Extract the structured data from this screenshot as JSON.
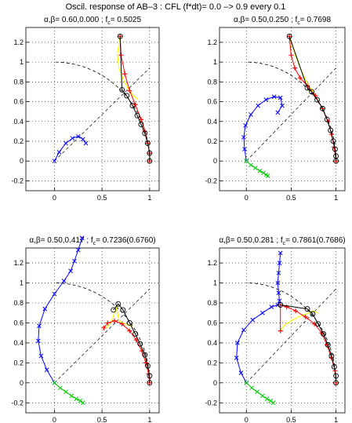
{
  "figure": {
    "title": "Oscil. response of AB–3 : CFL (f*dt)= 0.0 –> 0.9 every 0.1"
  },
  "chart_data": [
    {
      "type": "line",
      "title": "α,β= 0.60,0.000 ; f_c= 0.5025",
      "title_main": "α,β= 0.60,0.000 ; f",
      "title_sub": "c",
      "title_tail": "= 0.5025",
      "xlim": [
        -0.3,
        1.1
      ],
      "ylim": [
        -0.3,
        1.35
      ],
      "xticks": [
        0,
        0.5,
        1
      ],
      "xtick_labels": [
        "0",
        "0.5",
        "1"
      ],
      "yticks": [
        -0.2,
        0,
        0.2,
        0.4,
        0.6,
        0.8,
        1,
        1.2
      ],
      "ytick_labels": [
        "-0.2",
        "0",
        "0.2",
        "0.4",
        "0.6",
        "0.8",
        "1",
        "1.2"
      ],
      "grid": "dotted",
      "series": [
        {
          "color": "#0000ff",
          "marker": "x",
          "x": [
            0,
            0.05,
            0.12,
            0.19,
            0.25,
            0.3,
            0.33
          ],
          "y": [
            0,
            0.09,
            0.18,
            0.23,
            0.25,
            0.22,
            0.18
          ]
        },
        {
          "color": "#ffff00",
          "marker": "none",
          "x": [
            0.69,
            0.66,
            0.68,
            0.73,
            0.78,
            0.83,
            0.88
          ],
          "y": [
            1.26,
            1.08,
            0.93,
            0.81,
            0.72,
            0.66,
            0.62
          ]
        },
        {
          "color": "#ff0000",
          "marker": "+",
          "x": [
            0.69,
            0.7,
            0.74,
            0.79,
            0.85,
            0.91,
            0.95,
            0.98,
            1.0,
            1.0
          ],
          "y": [
            1.26,
            1.07,
            0.88,
            0.71,
            0.57,
            0.42,
            0.3,
            0.18,
            0.08,
            0.0
          ]
        },
        {
          "color": "#000000",
          "marker": "o",
          "x": [
            0.69,
            0.71,
            0.76,
            0.82,
            0.87,
            0.91,
            0.95,
            0.98,
            1.0,
            1.0
          ],
          "y": [
            1.26,
            0.72,
            0.66,
            0.56,
            0.46,
            0.37,
            0.28,
            0.18,
            0.08,
            0.0
          ]
        }
      ]
    },
    {
      "type": "line",
      "title": "α,β= 0.50,0.250 ; f_c= 0.7698",
      "title_main": "α,β= 0.50,0.250 ; f",
      "title_sub": "c",
      "title_tail": "= 0.7698",
      "xlim": [
        -0.3,
        1.1
      ],
      "ylim": [
        -0.3,
        1.35
      ],
      "xticks": [
        0,
        0.5,
        1
      ],
      "xtick_labels": [
        "0",
        "0.5",
        "1"
      ],
      "yticks": [
        -0.2,
        0,
        0.2,
        0.4,
        0.6,
        0.8,
        1,
        1.2
      ],
      "ytick_labels": [
        "-0.2",
        "0",
        "0.2",
        "0.4",
        "0.6",
        "0.8",
        "1",
        "1.2"
      ],
      "grid": "dotted",
      "series": [
        {
          "color": "#0000ff",
          "marker": "x",
          "x": [
            0,
            -0.02,
            -0.03,
            -0.01,
            0.05,
            0.13,
            0.22,
            0.31,
            0.38,
            0.4,
            0.35
          ],
          "y": [
            0,
            0.12,
            0.24,
            0.36,
            0.47,
            0.56,
            0.62,
            0.65,
            0.64,
            0.56,
            0.49
          ]
        },
        {
          "color": "#00cc00",
          "marker": "x",
          "x": [
            0,
            0.05,
            0.1,
            0.15,
            0.19,
            0.22,
            0.24
          ],
          "y": [
            0,
            -0.04,
            -0.07,
            -0.1,
            -0.12,
            -0.14,
            -0.15
          ]
        },
        {
          "color": "#ffff00",
          "marker": "none",
          "x": [
            0.48,
            0.55,
            0.62,
            0.67,
            0.73,
            0.78
          ],
          "y": [
            1.26,
            1.06,
            0.9,
            0.8,
            0.72,
            0.66
          ]
        },
        {
          "color": "#ff0000",
          "marker": "+",
          "x": [
            0.48,
            0.5,
            0.54,
            0.6,
            0.68,
            0.77,
            0.85,
            0.91,
            0.95,
            0.98,
            1.0
          ],
          "y": [
            1.26,
            1.07,
            0.94,
            0.84,
            0.76,
            0.66,
            0.53,
            0.4,
            0.27,
            0.14,
            0.0
          ]
        },
        {
          "color": "#000000",
          "marker": "o",
          "x": [
            0.48,
            0.68,
            0.73,
            0.79,
            0.85,
            0.9,
            0.94,
            0.97,
            0.99,
            1.0,
            1.0
          ],
          "y": [
            1.26,
            0.74,
            0.7,
            0.62,
            0.53,
            0.42,
            0.31,
            0.2,
            0.12,
            0.05,
            0.0
          ]
        }
      ]
    },
    {
      "type": "line",
      "title": "α,β= 0.50,0.417 ; f_c= 0.7236(0.6760)",
      "title_main": "α,β= 0.50,0.417 ; f",
      "title_sub": "c",
      "title_tail": "= 0.7236(0.6760)",
      "xlim": [
        -0.3,
        1.1
      ],
      "ylim": [
        -0.3,
        1.35
      ],
      "xticks": [
        0,
        0.5,
        1
      ],
      "xtick_labels": [
        "0",
        "0.5",
        "1"
      ],
      "yticks": [
        -0.2,
        0,
        0.2,
        0.4,
        0.6,
        0.8,
        1,
        1.2
      ],
      "ytick_labels": [
        "-0.2",
        "0",
        "0.2",
        "0.4",
        "0.6",
        "0.8",
        "1",
        "1.2"
      ],
      "grid": "dotted",
      "series": [
        {
          "color": "#0000ff",
          "marker": "x",
          "x": [
            0,
            -0.08,
            -0.14,
            -0.17,
            -0.16,
            -0.1,
            0.0,
            0.1,
            0.17,
            0.21,
            0.25,
            0.29
          ],
          "y": [
            0,
            0.13,
            0.27,
            0.42,
            0.57,
            0.74,
            0.89,
            1.02,
            1.12,
            1.22,
            1.33,
            1.45
          ]
        },
        {
          "color": "#00cc00",
          "marker": "x",
          "x": [
            0,
            0.06,
            0.12,
            0.18,
            0.23,
            0.27,
            0.3
          ],
          "y": [
            0,
            -0.05,
            -0.09,
            -0.13,
            -0.16,
            -0.18,
            -0.2
          ]
        },
        {
          "color": "#ffff00",
          "marker": "none",
          "x": [
            0.55,
            0.6,
            0.65,
            0.68,
            0.72,
            0.77,
            0.82
          ],
          "y": [
            0.55,
            0.62,
            0.75,
            0.62,
            0.6,
            0.58,
            0.56
          ]
        },
        {
          "color": "#ff0000",
          "marker": "+",
          "x": [
            0.52,
            0.56,
            0.63,
            0.71,
            0.79,
            0.86,
            0.92,
            0.96,
            0.99,
            1.0
          ],
          "y": [
            0.55,
            0.6,
            0.62,
            0.59,
            0.52,
            0.43,
            0.32,
            0.2,
            0.09,
            0.0
          ]
        },
        {
          "color": "#000000",
          "marker": "o",
          "x": [
            0.62,
            0.67,
            0.72,
            0.79,
            0.85,
            0.9,
            0.95,
            0.98,
            1.0,
            1.0
          ],
          "y": [
            0.73,
            0.79,
            0.73,
            0.6,
            0.49,
            0.39,
            0.28,
            0.17,
            0.07,
            0.0
          ]
        }
      ]
    },
    {
      "type": "line",
      "title": "α,β= 0.50,0.281 ; f_c= 0.7861(0.7686)",
      "title_main": "α,β= 0.50,0.281 ; f",
      "title_sub": "c",
      "title_tail": "= 0.7861(0.7686)",
      "xlim": [
        -0.3,
        1.1
      ],
      "ylim": [
        -0.3,
        1.35
      ],
      "xticks": [
        0,
        0.5,
        1
      ],
      "xtick_labels": [
        "0",
        "0.5",
        "1"
      ],
      "yticks": [
        -0.2,
        0,
        0.2,
        0.4,
        0.6,
        0.8,
        1,
        1.2
      ],
      "ytick_labels": [
        "-0.2",
        "0",
        "0.2",
        "0.4",
        "0.6",
        "0.8",
        "1",
        "1.2"
      ],
      "grid": "dotted",
      "series": [
        {
          "color": "#0000ff",
          "marker": "x",
          "x": [
            0,
            -0.06,
            -0.11,
            -0.1,
            -0.03,
            0.07,
            0.18,
            0.28,
            0.35,
            0.37,
            0.36,
            0.35,
            0.36,
            0.37,
            0.38
          ],
          "y": [
            0,
            0.1,
            0.25,
            0.4,
            0.53,
            0.63,
            0.7,
            0.76,
            0.78,
            0.82,
            0.9,
            1.0,
            1.1,
            1.2,
            1.3
          ]
        },
        {
          "color": "#00cc00",
          "marker": "x",
          "x": [
            0,
            0.06,
            0.12,
            0.18,
            0.23,
            0.27,
            0.3
          ],
          "y": [
            0,
            -0.05,
            -0.09,
            -0.13,
            -0.16,
            -0.18,
            -0.2
          ]
        },
        {
          "color": "#ffff00",
          "marker": "none",
          "x": [
            0.38,
            0.43,
            0.5,
            0.58,
            0.67,
            0.74,
            0.8
          ],
          "y": [
            0.52,
            0.58,
            0.62,
            0.66,
            0.69,
            0.72,
            0.7
          ]
        },
        {
          "color": "#ff0000",
          "marker": "+",
          "x": [
            0.38,
            0.38,
            0.45,
            0.55,
            0.66,
            0.76,
            0.84,
            0.9,
            0.95,
            0.99,
            1.0
          ],
          "y": [
            0.52,
            0.78,
            0.76,
            0.72,
            0.66,
            0.59,
            0.5,
            0.38,
            0.25,
            0.12,
            0.0
          ]
        },
        {
          "color": "#000000",
          "marker": "o",
          "x": [
            0.38,
            0.68,
            0.74,
            0.8,
            0.86,
            0.91,
            0.95,
            0.98,
            1.0,
            1.0
          ],
          "y": [
            0.78,
            0.74,
            0.69,
            0.59,
            0.49,
            0.38,
            0.27,
            0.16,
            0.07,
            0.0
          ]
        }
      ]
    }
  ]
}
